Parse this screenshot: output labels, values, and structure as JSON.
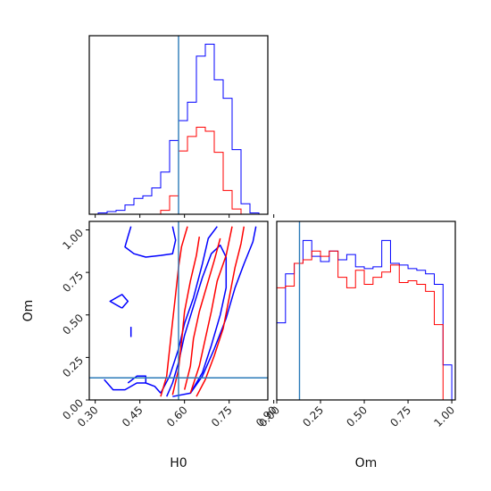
{
  "chart_data": {
    "type": "corner",
    "parameters": [
      "H0",
      "Om"
    ],
    "truth": {
      "H0": 0.58,
      "Om": 0.13
    },
    "truth_color": "#2a7ab8",
    "series": [
      {
        "color": "#0000ff"
      },
      {
        "color": "#ff0000"
      }
    ],
    "H0_ticks": [
      "0.30",
      "0.45",
      "0.60",
      "0.75",
      "0.90"
    ],
    "H0_tick_values": [
      0.3,
      0.45,
      0.6,
      0.75,
      0.9
    ],
    "H0_range": [
      0.28,
      0.88
    ],
    "Om_ticks": [
      "0.00",
      "0.25",
      "0.50",
      "0.75",
      "1.00"
    ],
    "Om_tick_values": [
      0.0,
      0.25,
      0.5,
      0.75,
      1.0
    ],
    "Om_range": [
      0.0,
      1.05
    ],
    "H0_hist": {
      "edges": [
        0.28,
        0.31,
        0.34,
        0.37,
        0.4,
        0.43,
        0.46,
        0.49,
        0.52,
        0.55,
        0.58,
        0.61,
        0.64,
        0.67,
        0.7,
        0.73,
        0.76,
        0.79,
        0.82,
        0.85,
        0.88
      ],
      "blue": [
        0,
        1,
        2,
        3,
        7,
        12,
        14,
        20,
        32,
        56,
        71,
        85,
        120,
        129,
        102,
        88,
        49,
        8,
        1,
        0
      ],
      "red": [
        0,
        0,
        0,
        0,
        0,
        0,
        0,
        0,
        3,
        14,
        48,
        59,
        66,
        63,
        47,
        18,
        4,
        0,
        0,
        0
      ]
    },
    "Om_hist": {
      "edges": [
        0.0,
        0.05,
        0.1,
        0.15,
        0.2,
        0.25,
        0.3,
        0.35,
        0.4,
        0.45,
        0.5,
        0.55,
        0.6,
        0.65,
        0.7,
        0.75,
        0.8,
        0.85,
        0.9,
        0.95,
        1.0
      ],
      "blue": [
        44,
        72,
        78,
        91,
        82,
        79,
        85,
        80,
        83,
        76,
        75,
        76,
        91,
        78,
        77,
        75,
        74,
        72,
        66,
        20
      ],
      "red": [
        64,
        65,
        78,
        80,
        85,
        82,
        85,
        70,
        64,
        74,
        66,
        70,
        73,
        77,
        67,
        68,
        66,
        62,
        43,
        0
      ]
    },
    "contours": {
      "blue": [
        [
          [
            0.54,
            0.02
          ],
          [
            0.56,
            0.1
          ],
          [
            0.58,
            0.22
          ],
          [
            0.6,
            0.38
          ],
          [
            0.63,
            0.55
          ],
          [
            0.66,
            0.72
          ],
          [
            0.69,
            0.86
          ],
          [
            0.72,
            0.91
          ],
          [
            0.74,
            0.84
          ],
          [
            0.74,
            0.66
          ],
          [
            0.72,
            0.5
          ],
          [
            0.69,
            0.32
          ],
          [
            0.66,
            0.16
          ],
          [
            0.62,
            0.04
          ],
          [
            0.56,
            0.02
          ]
        ],
        [
          [
            0.52,
            0.04
          ],
          [
            0.55,
            0.14
          ],
          [
            0.58,
            0.3
          ],
          [
            0.6,
            0.45
          ],
          [
            0.63,
            0.6
          ],
          [
            0.66,
            0.8
          ],
          [
            0.68,
            0.95
          ],
          [
            0.71,
            1.02
          ]
        ],
        [
          [
            0.62,
            0.04
          ],
          [
            0.66,
            0.14
          ],
          [
            0.7,
            0.3
          ],
          [
            0.74,
            0.48
          ],
          [
            0.77,
            0.66
          ],
          [
            0.8,
            0.8
          ],
          [
            0.83,
            0.93
          ],
          [
            0.84,
            1.02
          ]
        ],
        [
          [
            0.33,
            0.12
          ],
          [
            0.36,
            0.06
          ],
          [
            0.4,
            0.06
          ],
          [
            0.44,
            0.1
          ],
          [
            0.47,
            0.1
          ],
          [
            0.5,
            0.08
          ],
          [
            0.52,
            0.04
          ]
        ],
        [
          [
            0.41,
            0.1
          ],
          [
            0.44,
            0.14
          ],
          [
            0.47,
            0.14
          ],
          [
            0.47,
            0.1
          ]
        ],
        [
          [
            0.42,
            1.02
          ],
          [
            0.41,
            0.96
          ],
          [
            0.4,
            0.9
          ],
          [
            0.43,
            0.86
          ],
          [
            0.47,
            0.84
          ],
          [
            0.52,
            0.85
          ],
          [
            0.56,
            0.86
          ],
          [
            0.57,
            0.94
          ],
          [
            0.56,
            1.02
          ]
        ],
        [
          [
            0.39,
            0.54
          ],
          [
            0.35,
            0.58
          ],
          [
            0.39,
            0.62
          ],
          [
            0.41,
            0.58
          ],
          [
            0.39,
            0.54
          ]
        ],
        [
          [
            0.42,
            0.43
          ],
          [
            0.42,
            0.4
          ],
          [
            0.42,
            0.37
          ]
        ]
      ],
      "red": [
        [
          [
            0.52,
            0.02
          ],
          [
            0.54,
            0.14
          ],
          [
            0.55,
            0.3
          ],
          [
            0.56,
            0.46
          ],
          [
            0.57,
            0.62
          ],
          [
            0.58,
            0.78
          ],
          [
            0.59,
            0.9
          ],
          [
            0.61,
            1.02
          ]
        ],
        [
          [
            0.56,
            0.03
          ],
          [
            0.58,
            0.18
          ],
          [
            0.59,
            0.34
          ],
          [
            0.6,
            0.52
          ],
          [
            0.62,
            0.7
          ],
          [
            0.64,
            0.85
          ],
          [
            0.65,
            0.96
          ]
        ],
        [
          [
            0.6,
            0.06
          ],
          [
            0.62,
            0.2
          ],
          [
            0.63,
            0.36
          ],
          [
            0.65,
            0.52
          ],
          [
            0.68,
            0.7
          ],
          [
            0.7,
            0.82
          ],
          [
            0.72,
            0.95
          ]
        ],
        [
          [
            0.62,
            0.04
          ],
          [
            0.65,
            0.2
          ],
          [
            0.67,
            0.36
          ],
          [
            0.69,
            0.52
          ],
          [
            0.71,
            0.7
          ],
          [
            0.74,
            0.85
          ],
          [
            0.76,
            1.02
          ]
        ],
        [
          [
            0.64,
            0.02
          ],
          [
            0.67,
            0.12
          ],
          [
            0.7,
            0.26
          ],
          [
            0.73,
            0.42
          ],
          [
            0.75,
            0.6
          ],
          [
            0.77,
            0.78
          ],
          [
            0.79,
            0.92
          ],
          [
            0.8,
            1.02
          ]
        ]
      ]
    }
  }
}
